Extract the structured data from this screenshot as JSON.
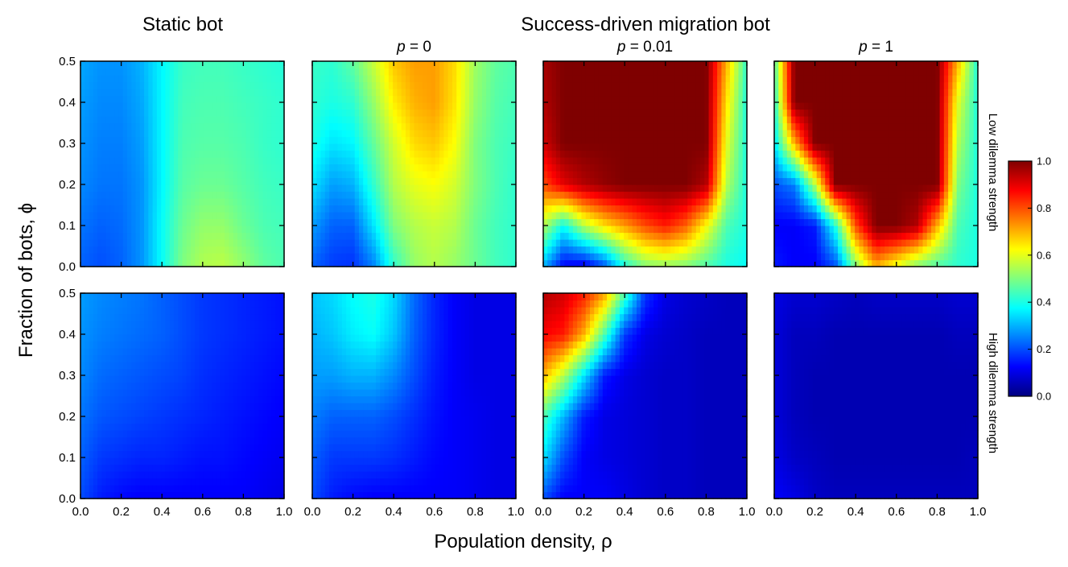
{
  "figure": {
    "static_title": "Static bot",
    "migration_title": "Success-driven migration bot",
    "panel_titles": [
      "",
      "p = 0",
      "p = 0.01",
      "p = 1"
    ],
    "row_labels": [
      "Low dilemma strength",
      "High dilemma strength"
    ],
    "xlabel": "Population density, ρ",
    "ylabel": "Fraction of bots, ϕ",
    "x_ticks": [
      "0.0",
      "0.2",
      "0.4",
      "0.6",
      "0.8",
      "1.0"
    ],
    "y_ticks": [
      "0.0",
      "0.1",
      "0.2",
      "0.3",
      "0.4",
      "0.5"
    ],
    "colorbar_ticks": [
      "0.0",
      "0.2",
      "0.4",
      "0.6",
      "0.8",
      "1.0"
    ],
    "colormap": [
      "#00007f",
      "#0000ff",
      "#007fff",
      "#00ffff",
      "#7fff7f",
      "#ffff00",
      "#ff7f00",
      "#ff0000",
      "#7f0000"
    ]
  },
  "chart_data": {
    "type": "heatmap",
    "xlabel": "Population density, ρ",
    "ylabel": "Fraction of bots, ϕ",
    "xlim": [
      0,
      1
    ],
    "ylim": [
      0,
      0.5
    ],
    "clim": [
      0,
      1
    ],
    "colormap_name": "jet",
    "grid": [
      0,
      0.1,
      0.2,
      0.3,
      0.4,
      0.5,
      0.6,
      0.7,
      0.8,
      0.9,
      1.0
    ],
    "y_grid": [
      0,
      0.1,
      0.2,
      0.3,
      0.4,
      0.5
    ],
    "panels": [
      {
        "row": "Low dilemma strength",
        "column": "Static bot",
        "values": [
          [
            0.22,
            0.2,
            0.22,
            0.27,
            0.38,
            0.5,
            0.55,
            0.56,
            0.52,
            0.47,
            0.45
          ],
          [
            0.24,
            0.22,
            0.23,
            0.27,
            0.38,
            0.48,
            0.52,
            0.52,
            0.48,
            0.45,
            0.44
          ],
          [
            0.26,
            0.24,
            0.24,
            0.27,
            0.37,
            0.46,
            0.48,
            0.48,
            0.46,
            0.44,
            0.43
          ],
          [
            0.27,
            0.25,
            0.25,
            0.28,
            0.37,
            0.45,
            0.46,
            0.46,
            0.45,
            0.43,
            0.42
          ],
          [
            0.28,
            0.26,
            0.26,
            0.29,
            0.37,
            0.44,
            0.45,
            0.45,
            0.44,
            0.43,
            0.42
          ],
          [
            0.29,
            0.27,
            0.27,
            0.3,
            0.37,
            0.43,
            0.44,
            0.44,
            0.43,
            0.42,
            0.41
          ]
        ]
      },
      {
        "row": "Low dilemma strength",
        "column": "p = 0",
        "values": [
          [
            0.22,
            0.18,
            0.17,
            0.25,
            0.42,
            0.52,
            0.55,
            0.52,
            0.48,
            0.44,
            0.42
          ],
          [
            0.28,
            0.22,
            0.22,
            0.35,
            0.5,
            0.55,
            0.57,
            0.55,
            0.48,
            0.44,
            0.42
          ],
          [
            0.35,
            0.28,
            0.3,
            0.42,
            0.55,
            0.6,
            0.62,
            0.58,
            0.5,
            0.45,
            0.42
          ],
          [
            0.4,
            0.35,
            0.37,
            0.47,
            0.58,
            0.66,
            0.68,
            0.62,
            0.5,
            0.45,
            0.43
          ],
          [
            0.42,
            0.4,
            0.42,
            0.52,
            0.64,
            0.7,
            0.72,
            0.65,
            0.52,
            0.46,
            0.44
          ],
          [
            0.43,
            0.42,
            0.47,
            0.57,
            0.68,
            0.72,
            0.72,
            0.66,
            0.53,
            0.47,
            0.45
          ]
        ]
      },
      {
        "row": "Low dilemma strength",
        "column": "p = 0.01",
        "values": [
          [
            0.3,
            0.12,
            0.1,
            0.2,
            0.4,
            0.5,
            0.52,
            0.5,
            0.45,
            0.4,
            0.38
          ],
          [
            0.55,
            0.38,
            0.55,
            0.65,
            0.72,
            0.8,
            0.85,
            0.78,
            0.62,
            0.45,
            0.4
          ],
          [
            0.8,
            0.9,
            0.95,
            0.98,
            1,
            1,
            1,
            1,
            0.95,
            0.55,
            0.4
          ],
          [
            0.92,
            1,
            1,
            1,
            1,
            1,
            1,
            1,
            1,
            0.6,
            0.4
          ],
          [
            0.95,
            1,
            1,
            1,
            1,
            1,
            1,
            1,
            1,
            0.65,
            0.4
          ],
          [
            0.96,
            1,
            1,
            1,
            1,
            1,
            1,
            1,
            1,
            0.7,
            0.42
          ]
        ]
      },
      {
        "row": "Low dilemma strength",
        "column": "p = 1",
        "values": [
          [
            0.15,
            0.12,
            0.12,
            0.2,
            0.5,
            0.7,
            0.6,
            0.5,
            0.45,
            0.42,
            0.4
          ],
          [
            0.12,
            0.12,
            0.15,
            0.4,
            0.8,
            1,
            1,
            0.95,
            0.7,
            0.45,
            0.4
          ],
          [
            0.2,
            0.25,
            0.55,
            1,
            1,
            1,
            1,
            1,
            1,
            0.5,
            0.4
          ],
          [
            0.35,
            0.7,
            1,
            1,
            1,
            1,
            1,
            1,
            1,
            0.55,
            0.4
          ],
          [
            0.4,
            1,
            1,
            1,
            1,
            1,
            1,
            1,
            1,
            0.6,
            0.4
          ],
          [
            0.45,
            1,
            1,
            1,
            1,
            1,
            1,
            1,
            1,
            0.7,
            0.4
          ]
        ]
      },
      {
        "row": "High dilemma strength",
        "column": "Static bot",
        "values": [
          [
            0.2,
            0.15,
            0.13,
            0.12,
            0.12,
            0.12,
            0.12,
            0.12,
            0.12,
            0.11,
            0.1
          ],
          [
            0.22,
            0.18,
            0.17,
            0.16,
            0.16,
            0.15,
            0.14,
            0.14,
            0.13,
            0.12,
            0.11
          ],
          [
            0.24,
            0.21,
            0.2,
            0.19,
            0.18,
            0.17,
            0.16,
            0.15,
            0.14,
            0.13,
            0.12
          ],
          [
            0.26,
            0.23,
            0.22,
            0.21,
            0.2,
            0.19,
            0.17,
            0.16,
            0.15,
            0.14,
            0.13
          ],
          [
            0.27,
            0.25,
            0.24,
            0.23,
            0.22,
            0.2,
            0.18,
            0.17,
            0.16,
            0.15,
            0.14
          ],
          [
            0.28,
            0.26,
            0.25,
            0.24,
            0.22,
            0.2,
            0.18,
            0.17,
            0.16,
            0.15,
            0.14
          ]
        ]
      },
      {
        "row": "High dilemma strength",
        "column": "p = 0",
        "values": [
          [
            0.2,
            0.15,
            0.13,
            0.12,
            0.12,
            0.12,
            0.12,
            0.12,
            0.11,
            0.1,
            0.1
          ],
          [
            0.22,
            0.18,
            0.18,
            0.18,
            0.17,
            0.15,
            0.13,
            0.12,
            0.11,
            0.1,
            0.1
          ],
          [
            0.25,
            0.22,
            0.22,
            0.22,
            0.2,
            0.17,
            0.14,
            0.12,
            0.11,
            0.1,
            0.1
          ],
          [
            0.28,
            0.28,
            0.3,
            0.3,
            0.26,
            0.2,
            0.15,
            0.12,
            0.1,
            0.1,
            0.1
          ],
          [
            0.3,
            0.32,
            0.36,
            0.38,
            0.32,
            0.22,
            0.16,
            0.12,
            0.1,
            0.1,
            0.1
          ],
          [
            0.32,
            0.34,
            0.38,
            0.4,
            0.34,
            0.23,
            0.16,
            0.12,
            0.1,
            0.1,
            0.1
          ]
        ]
      },
      {
        "row": "High dilemma strength",
        "column": "p = 0.01",
        "values": [
          [
            0.2,
            0.12,
            0.12,
            0.12,
            0.1,
            0.08,
            0.07,
            0.07,
            0.06,
            0.06,
            0.06
          ],
          [
            0.35,
            0.2,
            0.12,
            0.1,
            0.09,
            0.08,
            0.07,
            0.07,
            0.06,
            0.06,
            0.06
          ],
          [
            0.45,
            0.3,
            0.15,
            0.1,
            0.09,
            0.08,
            0.07,
            0.07,
            0.06,
            0.06,
            0.06
          ],
          [
            0.7,
            0.55,
            0.35,
            0.15,
            0.1,
            0.08,
            0.07,
            0.07,
            0.06,
            0.06,
            0.06
          ],
          [
            0.88,
            0.85,
            0.7,
            0.45,
            0.18,
            0.1,
            0.08,
            0.07,
            0.06,
            0.06,
            0.06
          ],
          [
            0.95,
            0.92,
            0.85,
            0.72,
            0.45,
            0.18,
            0.1,
            0.08,
            0.07,
            0.06,
            0.06
          ]
        ]
      },
      {
        "row": "High dilemma strength",
        "column": "p = 1",
        "values": [
          [
            0.12,
            0.1,
            0.07,
            0.06,
            0.06,
            0.06,
            0.06,
            0.06,
            0.06,
            0.06,
            0.06
          ],
          [
            0.1,
            0.07,
            0.06,
            0.05,
            0.05,
            0.05,
            0.05,
            0.05,
            0.05,
            0.05,
            0.06
          ],
          [
            0.09,
            0.06,
            0.05,
            0.05,
            0.05,
            0.05,
            0.05,
            0.05,
            0.05,
            0.05,
            0.05
          ],
          [
            0.09,
            0.06,
            0.05,
            0.05,
            0.05,
            0.05,
            0.05,
            0.05,
            0.05,
            0.05,
            0.05
          ],
          [
            0.09,
            0.06,
            0.06,
            0.05,
            0.05,
            0.05,
            0.05,
            0.05,
            0.05,
            0.06,
            0.06
          ],
          [
            0.1,
            0.08,
            0.08,
            0.07,
            0.06,
            0.07,
            0.07,
            0.07,
            0.07,
            0.08,
            0.08
          ]
        ]
      }
    ]
  }
}
